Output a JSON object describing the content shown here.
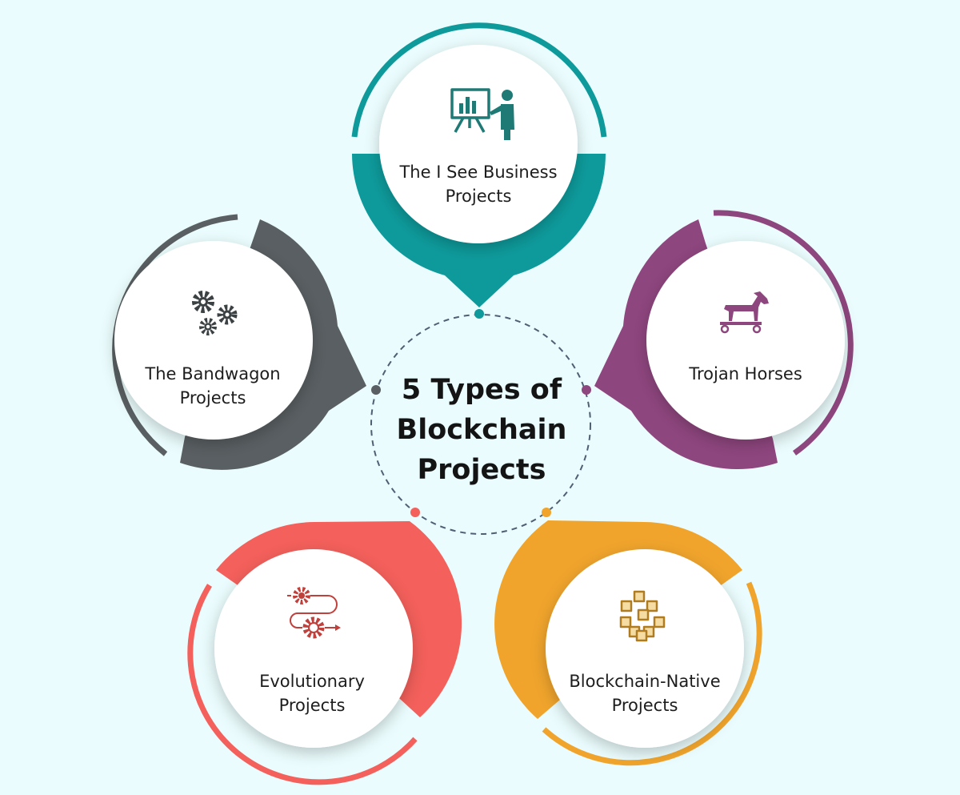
{
  "center": {
    "title_line1": "5 Types of",
    "title_line2": "Blockchain",
    "title_line3": "Projects"
  },
  "nodes": [
    {
      "id": "i-see-business",
      "line1": "The I See Business",
      "line2": "Projects",
      "color": "#0e9a9b",
      "icon": "presentation-icon"
    },
    {
      "id": "trojan-horses",
      "line1": "Trojan Horses",
      "line2": "",
      "color": "#8e467e",
      "icon": "trojan-horse-icon"
    },
    {
      "id": "blockchain-native",
      "line1": "Blockchain-Native",
      "line2": "Projects",
      "color": "#f0a42c",
      "icon": "blocks-network-icon"
    },
    {
      "id": "evolutionary",
      "line1": "Evolutionary",
      "line2": "Projects",
      "color": "#f4605b",
      "icon": "gears-process-icon"
    },
    {
      "id": "bandwagon",
      "line1": "The Bandwagon",
      "line2": "Projects",
      "color": "#595f62",
      "icon": "gears-icon"
    }
  ]
}
